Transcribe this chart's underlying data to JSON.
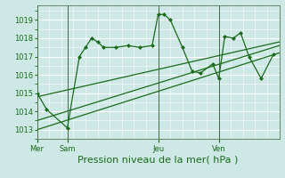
{
  "title": "Pression niveau de la mer( hPa )",
  "bg_color": "#cde8e5",
  "grid_color": "#ffffff",
  "line_color": "#1a6b1a",
  "ylim": [
    1012.5,
    1019.8
  ],
  "yticks": [
    1013,
    1014,
    1015,
    1016,
    1017,
    1018,
    1019
  ],
  "day_labels": [
    "Mer",
    "Sam",
    "Jeu",
    "Ven"
  ],
  "day_positions": [
    0,
    2.5,
    10,
    15
  ],
  "xlim": [
    0,
    20
  ],
  "series1_x": [
    0,
    0.8,
    2.5,
    3.5,
    4.0,
    4.5,
    5.0,
    5.5,
    6.5,
    7.5,
    8.5,
    9.5,
    10.0,
    10.5,
    11.0,
    12.0,
    12.8,
    13.5,
    14.5,
    15.0,
    15.5,
    16.2,
    16.8,
    17.5,
    18.5,
    19.5
  ],
  "series1_y": [
    1015.0,
    1014.1,
    1013.1,
    1017.0,
    1017.5,
    1018.0,
    1017.8,
    1017.5,
    1017.5,
    1017.6,
    1017.5,
    1017.6,
    1019.3,
    1019.3,
    1019.0,
    1017.5,
    1016.2,
    1016.1,
    1016.6,
    1015.8,
    1018.1,
    1018.0,
    1018.3,
    1017.0,
    1015.8,
    1017.1
  ],
  "series2_x": [
    0,
    20
  ],
  "series2_y": [
    1013.0,
    1017.2
  ],
  "series3_x": [
    0,
    20
  ],
  "series3_y": [
    1013.5,
    1017.6
  ],
  "series4_x": [
    0,
    20
  ],
  "series4_y": [
    1014.8,
    1017.8
  ],
  "tick_labelsize": 6,
  "xlabel_fontsize": 8
}
